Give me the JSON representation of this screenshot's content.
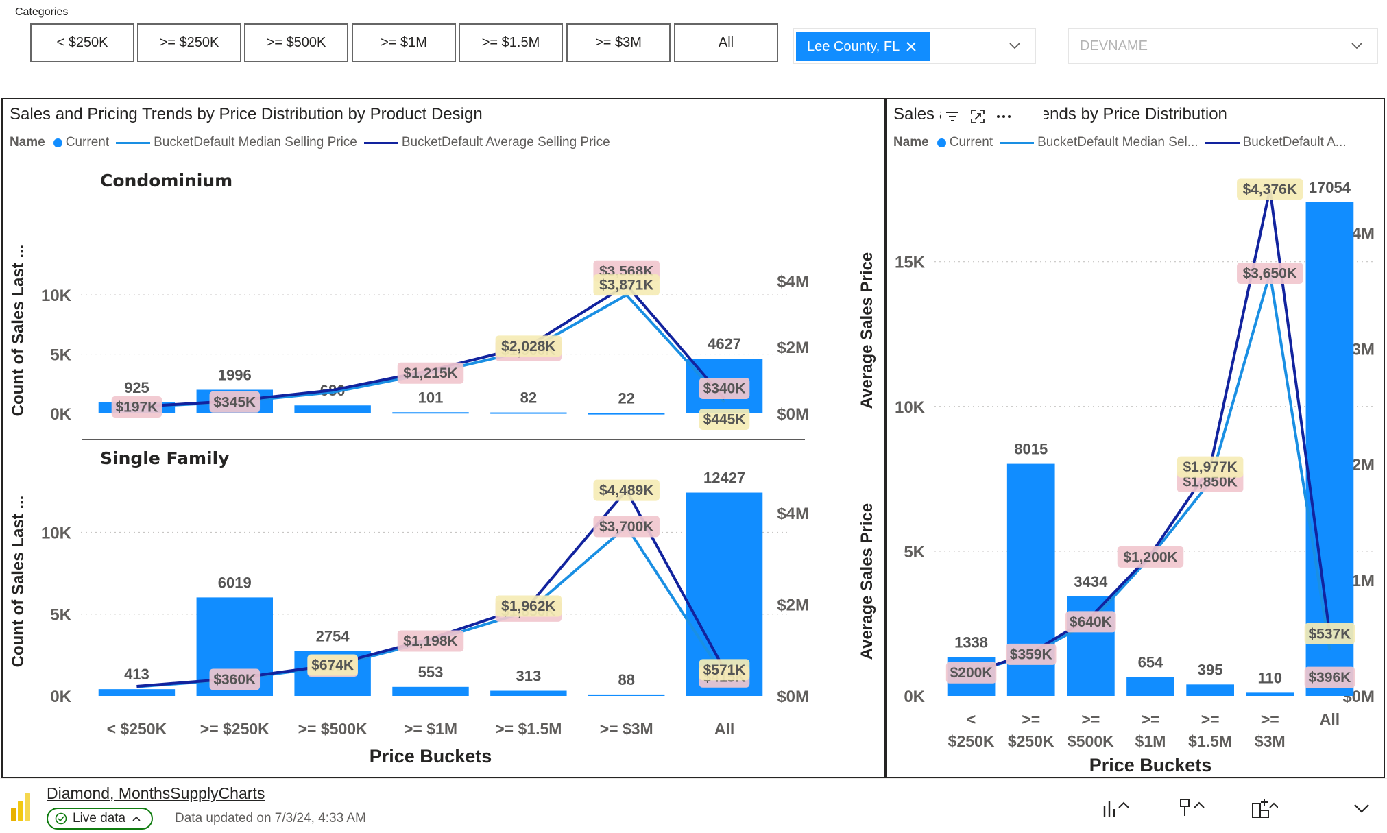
{
  "slicer": {
    "label": "Categories",
    "buttons": [
      "< $250K",
      ">= $250K",
      ">= $500K",
      ">= $1M",
      ">= $1.5M",
      ">= $3M",
      "All"
    ]
  },
  "filters": {
    "county_chip": "Lee County, FL",
    "dev_placeholder": "DEVNAME"
  },
  "left_panel": {
    "title": "Sales and Pricing Trends by Price Distribution by Product Design",
    "legend_name": "Name",
    "legend": [
      "Current",
      "BucketDefault Median Selling Price",
      "BucketDefault Average Selling Price"
    ]
  },
  "right_panel": {
    "title": "Sales and Pricing Trends by Price Distribution",
    "legend_name": "Name",
    "legend": [
      "Current",
      "BucketDefault Median Sel...",
      "BucketDefault A..."
    ]
  },
  "footer": {
    "report_name": "Diamond, MonthsSupplyCharts",
    "live_label": "Live data",
    "updated_text": "Data updated on 7/3/24, 4:33 AM"
  },
  "colors": {
    "bar": "#118dff",
    "median_line": "#1a8fe3",
    "average_line": "#12239e",
    "median_label_bg": "#f1c7ce",
    "average_label_bg": "#f5ebb5",
    "chip": "#118dff"
  },
  "chart_data": [
    {
      "type": "bar",
      "title": "Condominium",
      "categories": [
        "< $250K",
        ">= $250K",
        ">= $500K",
        ">= $1M",
        ">= $1.5M",
        ">= $3M",
        "All"
      ],
      "series": [
        {
          "name": "Current",
          "values": [
            925,
            1996,
            680,
            101,
            82,
            22,
            4627
          ]
        },
        {
          "name": "BucketDefault Median Selling Price",
          "values": [
            197,
            345,
            640,
            1215,
            1900,
            3568,
            340
          ],
          "units": "$K"
        },
        {
          "name": "BucketDefault Average Selling Price",
          "values": [
            200,
            380,
            700,
            1300,
            2028,
            3871,
            445
          ],
          "units": "$K"
        }
      ],
      "median_labels": [
        "$197K",
        "$345K",
        "",
        "$1,215K",
        "$1,900K",
        "$3,568K",
        "$340K"
      ],
      "average_labels": [
        "",
        "",
        "",
        "",
        "$2,028K",
        "$3,871K",
        "$445K"
      ],
      "ylabel": "Count of Sales Last ...",
      "y2label": "Average Sales Price",
      "ylim": [
        0,
        14000
      ],
      "y2lim": [
        0,
        5
      ],
      "yticks": [
        "0K",
        "5K",
        "10K"
      ],
      "y2ticks": [
        "$0M",
        "$2M",
        "$4M"
      ],
      "grid": true
    },
    {
      "type": "bar",
      "title": "Single Family",
      "categories": [
        "< $250K",
        ">= $250K",
        ">= $500K",
        ">= $1M",
        ">= $1.5M",
        ">= $3M",
        "All"
      ],
      "series": [
        {
          "name": "Current",
          "values": [
            413,
            6019,
            2754,
            553,
            313,
            88,
            12427
          ]
        },
        {
          "name": "BucketDefault Median Selling Price",
          "values": [
            200,
            360,
            650,
            1198,
            1850,
            3700,
            415
          ],
          "units": "$K"
        },
        {
          "name": "BucketDefault Average Selling Price",
          "values": [
            210,
            380,
            674,
            1250,
            1962,
            4489,
            571
          ],
          "units": "$K"
        }
      ],
      "median_labels": [
        "",
        "$360K",
        "$650K",
        "$1,198K",
        "$1,850K",
        "$3,700K",
        "$415K"
      ],
      "average_labels": [
        "",
        "",
        "$674K",
        "",
        "$1,962K",
        "$4,489K",
        "$571K"
      ],
      "ylabel": "Count of Sales Last ...",
      "y2label": "Average Sales Price",
      "xlabel": "Price Buckets",
      "ylim": [
        0,
        14000
      ],
      "y2lim": [
        0,
        5
      ],
      "yticks": [
        "0K",
        "5K",
        "10K"
      ],
      "y2ticks": [
        "$0M",
        "$2M",
        "$4M"
      ],
      "grid": true
    },
    {
      "type": "bar",
      "title": "Sales and Pricing Trends by Price Distribution",
      "categories": [
        "< $250K",
        ">= $250K",
        ">= $500K",
        ">= $1M",
        ">= $1.5M",
        ">= $3M",
        "All"
      ],
      "category_lines": [
        [
          "<",
          "$250K"
        ],
        [
          ">=",
          "$250K"
        ],
        [
          ">=",
          "$500K"
        ],
        [
          ">=",
          "$1M"
        ],
        [
          ">=",
          "$1.5M"
        ],
        [
          ">=",
          "$3M"
        ],
        [
          "All",
          ""
        ]
      ],
      "series": [
        {
          "name": "Current",
          "values": [
            1338,
            8015,
            3434,
            654,
            395,
            110,
            17054
          ]
        },
        {
          "name": "BucketDefault Median Selling Price",
          "values": [
            200,
            359,
            640,
            1200,
            1850,
            3650,
            396
          ],
          "units": "$K"
        },
        {
          "name": "BucketDefault Average Selling Price",
          "values": [
            200,
            370,
            680,
            1220,
            1977,
            4376,
            537
          ],
          "units": "$K"
        }
      ],
      "median_labels": [
        "$200K",
        "$359K",
        "$640K",
        "$1,200K",
        "$1,850K",
        "$3,650K",
        "$396K"
      ],
      "average_labels": [
        "",
        "",
        "",
        "",
        "$1,977K",
        "$4,376K",
        "$537K"
      ],
      "xlabel": "Price Buckets",
      "ylim": [
        0,
        18000
      ],
      "y2lim": [
        0,
        4.5
      ],
      "yticks": [
        "0K",
        "5K",
        "10K",
        "15K"
      ],
      "y2ticks": [
        "$0M",
        "$1M",
        "$2M",
        "$3M",
        "$4M"
      ],
      "grid": true
    }
  ]
}
